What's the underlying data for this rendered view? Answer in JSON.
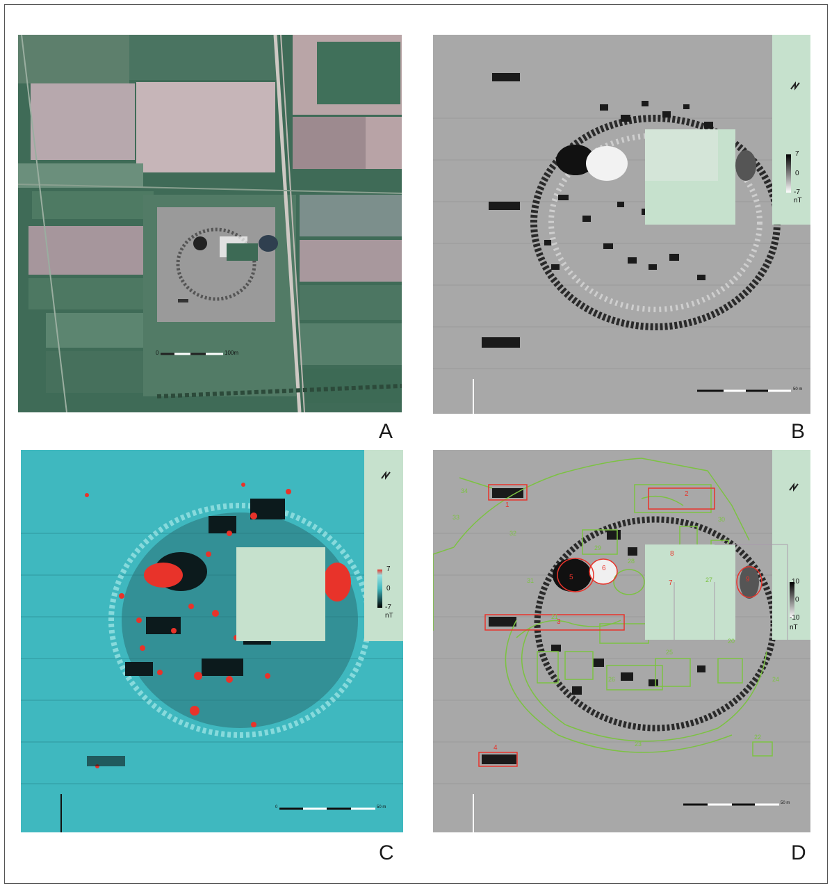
{
  "figure": {
    "panels": [
      {
        "letter": "A",
        "scale_label": "100m",
        "scale_zero": "0"
      },
      {
        "letter": "B",
        "scale_label": "50 m",
        "legend_max": "7",
        "legend_mid": "0",
        "legend_min": "-7",
        "legend_unit": "nT"
      },
      {
        "letter": "C",
        "scale_label": "50 m",
        "scale_zero": "0",
        "legend_max": "7",
        "legend_mid": "0",
        "legend_min": "-7",
        "legend_unit": "nT"
      },
      {
        "letter": "D",
        "scale_label": "50 m",
        "legend_max": "10",
        "legend_mid": "0",
        "legend_min": "-10",
        "legend_unit": "nT"
      }
    ],
    "anomaly_labels_red": [
      "1",
      "2",
      "3",
      "4",
      "5",
      "6",
      "7",
      "8",
      "9"
    ],
    "anomaly_labels_green": [
      "34",
      "33",
      "32",
      "31",
      "30",
      "29",
      "28",
      "27",
      "26",
      "25",
      "24",
      "23",
      "22",
      "21",
      "20"
    ],
    "colors": {
      "red_anomaly": "#e8332a",
      "green_outline": "#7cc242",
      "legend_bg": "#c6e1cd",
      "teal_bg": "#3fb8bf"
    }
  }
}
